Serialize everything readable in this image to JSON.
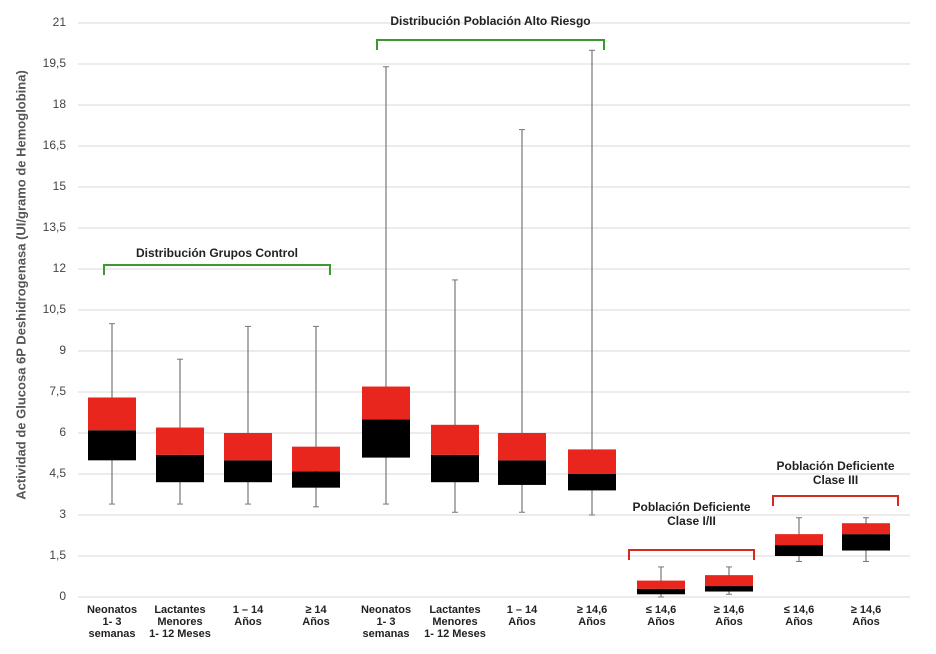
{
  "chart_data": {
    "type": "box",
    "y_label": "Actividad de Glucosa 6P  Deshidrogenasa (UI/gramo de Hemoglobina)",
    "categories": [
      [
        "Neonatos",
        "1- 3",
        "semanas"
      ],
      [
        "Lactantes",
        "Menores",
        "1- 12 Meses"
      ],
      [
        "1 – 14",
        "Años"
      ],
      [
        "≥ 14",
        "Años"
      ],
      [
        "Neonatos",
        "1- 3",
        "semanas"
      ],
      [
        "Lactantes",
        "Menores",
        "1- 12 Meses"
      ],
      [
        "1 – 14",
        "Años"
      ],
      [
        "≥ 14,6",
        "Años"
      ],
      [
        "≤ 14,6",
        "Años"
      ],
      [
        "≥ 14,6",
        "Años"
      ],
      [
        "≤ 14,6",
        "Años"
      ],
      [
        "≥ 14,6",
        "Años"
      ]
    ],
    "boxes": [
      {
        "min": 3.4,
        "q1": 5.0,
        "median": 6.1,
        "q3": 7.3,
        "max": 10.0
      },
      {
        "min": 3.4,
        "q1": 4.2,
        "median": 5.2,
        "q3": 6.2,
        "max": 8.7
      },
      {
        "min": 3.4,
        "q1": 4.2,
        "median": 5.0,
        "q3": 6.0,
        "max": 9.9
      },
      {
        "min": 3.3,
        "q1": 4.0,
        "median": 4.6,
        "q3": 5.5,
        "max": 9.9
      },
      {
        "min": 3.4,
        "q1": 5.1,
        "median": 6.5,
        "q3": 7.7,
        "max": 19.4
      },
      {
        "min": 3.1,
        "q1": 4.2,
        "median": 5.2,
        "q3": 6.3,
        "max": 11.6
      },
      {
        "min": 3.1,
        "q1": 4.1,
        "median": 5.0,
        "q3": 6.0,
        "max": 17.1
      },
      {
        "min": 3.0,
        "q1": 3.9,
        "median": 4.5,
        "q3": 5.4,
        "max": 20.0
      },
      {
        "min": 0.0,
        "q1": 0.1,
        "median": 0.3,
        "q3": 0.6,
        "max": 1.1
      },
      {
        "min": 0.1,
        "q1": 0.2,
        "median": 0.4,
        "q3": 0.8,
        "max": 1.1
      },
      {
        "min": 1.3,
        "q1": 1.5,
        "median": 1.9,
        "q3": 2.3,
        "max": 2.9
      },
      {
        "min": 1.3,
        "q1": 1.7,
        "median": 2.3,
        "q3": 2.7,
        "max": 2.9
      }
    ],
    "upper_color": "#e8261d",
    "lower_color": "#000000",
    "ylim": [
      0,
      21
    ],
    "yticks": [
      0,
      {
        "value": 1.5,
        "label": "1,5"
      },
      3,
      {
        "value": 4.5,
        "label": "4,5"
      },
      6,
      {
        "value": 7.5,
        "label": "7,5"
      },
      9,
      {
        "value": 10.5,
        "label": "10,5"
      },
      12,
      {
        "value": 13.5,
        "label": "13,5"
      },
      15,
      {
        "value": 16.5,
        "label": "16,5"
      },
      18,
      {
        "value": 19.5,
        "label": "19,5"
      },
      21
    ],
    "grid": true,
    "annotations": [
      [
        "Distribución Grupos Control"
      ],
      [
        "Distribución Población Alto Riesgo"
      ],
      [
        "Población Deficiente",
        "Clase I/II"
      ],
      [
        "Población Deficiente",
        "Clase III"
      ]
    ]
  }
}
